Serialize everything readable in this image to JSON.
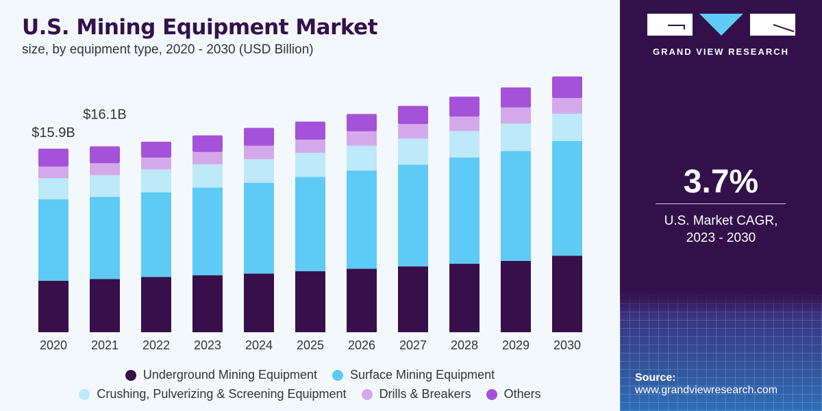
{
  "header": {
    "title": "U.S. Mining Equipment Market",
    "subtitle": "size, by equipment type, 2020 - 2030 (USD Billion)"
  },
  "panel": {
    "brand": "GRAND VIEW RESEARCH",
    "cagr_value": "3.7%",
    "cagr_label_1": "U.S. Market CAGR,",
    "cagr_label_2": "2023 - 2030",
    "source_label": "Source:",
    "source_url": "www.grandviewresearch.com"
  },
  "chart_data": {
    "type": "bar",
    "stacked": true,
    "title": "U.S. Mining Equipment Market",
    "subtitle": "size, by equipment type, 2020 - 2030 (USD Billion)",
    "xlabel": "",
    "ylabel": "USD Billion",
    "ylim": [
      0,
      23
    ],
    "grid": false,
    "legend_position": "bottom",
    "categories": [
      "2020",
      "2021",
      "2022",
      "2023",
      "2024",
      "2025",
      "2026",
      "2027",
      "2028",
      "2029",
      "2030"
    ],
    "series": [
      {
        "name": "Underground Mining Equipment",
        "color": "#370f4b",
        "values": [
          4.45,
          4.61,
          4.79,
          4.94,
          5.08,
          5.28,
          5.5,
          5.7,
          5.93,
          6.17,
          6.63
        ]
      },
      {
        "name": "Surface Mining Equipment",
        "color": "#5ecaf5",
        "values": [
          7.06,
          7.12,
          7.33,
          7.58,
          7.87,
          8.17,
          8.5,
          8.82,
          9.21,
          9.53,
          9.93
        ]
      },
      {
        "name": "Crushing, Pulverizing & Screening Equipment",
        "color": "#bde9f9",
        "values": [
          1.84,
          1.87,
          1.98,
          2.02,
          2.04,
          2.08,
          2.15,
          2.25,
          2.28,
          2.37,
          2.36
        ]
      },
      {
        "name": "Drills & Breakers",
        "color": "#d4a9ec",
        "values": [
          0.99,
          1.03,
          1.03,
          1.07,
          1.16,
          1.15,
          1.25,
          1.26,
          1.25,
          1.4,
          1.36
        ]
      },
      {
        "name": "Others",
        "color": "#a452d9",
        "values": [
          1.56,
          1.47,
          1.37,
          1.44,
          1.55,
          1.56,
          1.5,
          1.57,
          1.73,
          1.73,
          1.87
        ]
      }
    ],
    "annotations": [
      {
        "category": "2020",
        "text": "$15.9B"
      },
      {
        "category": "2021",
        "text": "$16.1B"
      }
    ]
  }
}
